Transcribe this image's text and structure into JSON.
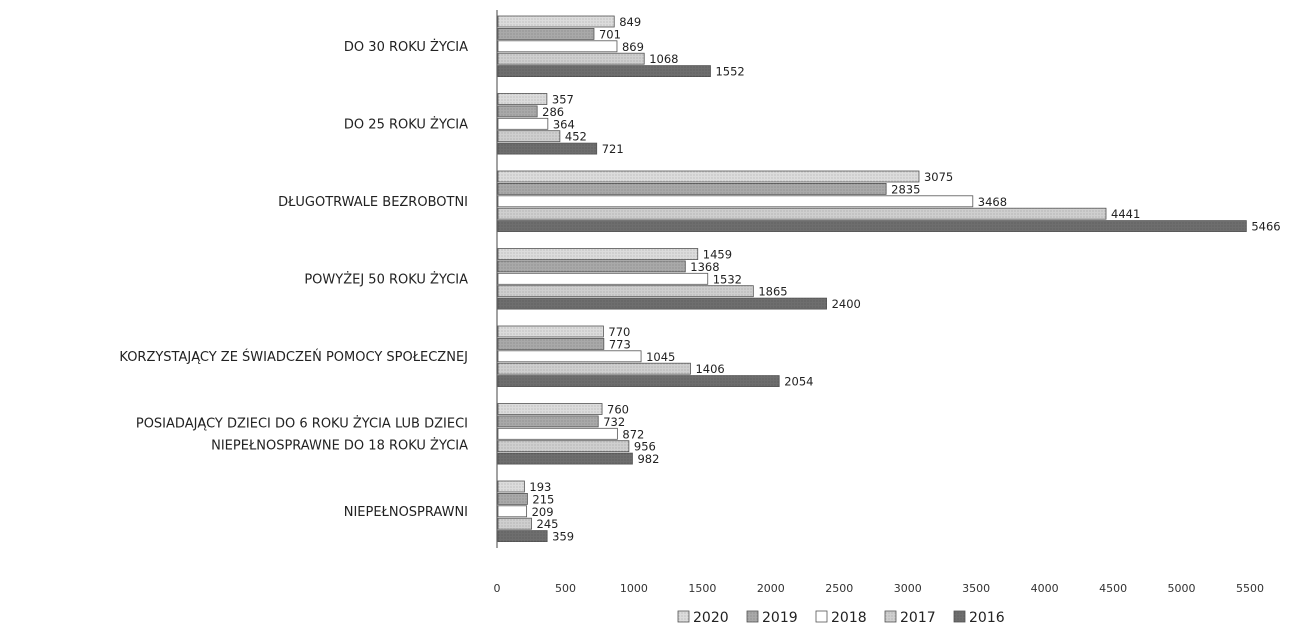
{
  "chart_data": {
    "type": "bar",
    "orientation": "horizontal",
    "title": "",
    "xlabel": "",
    "ylabel": "",
    "xlim": [
      0,
      5500
    ],
    "xticks": [
      0,
      500,
      1000,
      1500,
      2000,
      2500,
      3000,
      3500,
      4000,
      4500,
      5000,
      5500
    ],
    "grid": false,
    "legend_position": "bottom",
    "categories": [
      [
        "DO 30 ROKU ŻYCIA"
      ],
      [
        "DO 25 ROKU ŻYCIA"
      ],
      [
        "DŁUGOTRWALE BEZROBOTNI"
      ],
      [
        "POWYŻEJ 50 ROKU ŻYCIA"
      ],
      [
        "KORZYSTAJĄCY ZE ŚWIADCZEŃ POMOCY SPOŁECZNEJ"
      ],
      [
        "POSIADAJĄCY DZIECI DO 6 ROKU ŻYCIA LUB DZIECI",
        "NIEPEŁNOSPRAWNE DO 18 ROKU ŻYCIA"
      ],
      [
        "NIEPEŁNOSPRAWNI"
      ]
    ],
    "series": [
      {
        "name": "2020",
        "color": "#dcdcdc",
        "values": [
          849,
          357,
          3075,
          1459,
          770,
          760,
          193
        ]
      },
      {
        "name": "2019",
        "color": "#a9a9a9",
        "values": [
          701,
          286,
          2835,
          1368,
          773,
          732,
          215
        ]
      },
      {
        "name": "2018",
        "color": "#ffffff",
        "values": [
          869,
          364,
          3468,
          1532,
          1045,
          872,
          209
        ]
      },
      {
        "name": "2017",
        "color": "#cfcfcf",
        "values": [
          1068,
          452,
          4441,
          1865,
          1406,
          956,
          245
        ]
      },
      {
        "name": "2016",
        "color": "#6e6e6e",
        "values": [
          1552,
          721,
          5466,
          2400,
          2054,
          982,
          359
        ]
      }
    ]
  }
}
